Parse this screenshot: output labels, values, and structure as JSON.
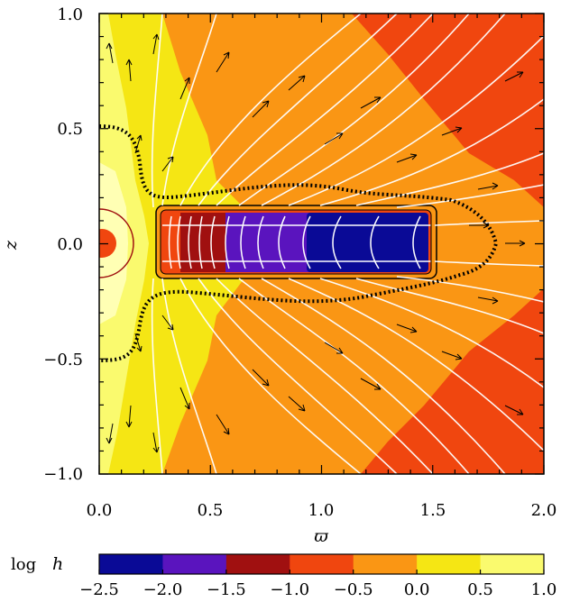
{
  "chart_data": {
    "type": "heatmap",
    "xlabel": "ϖ",
    "ylabel": "z",
    "xlim": [
      0.0,
      2.0
    ],
    "ylim": [
      -1.0,
      1.0
    ],
    "x_ticks": [
      "0.0",
      "0.5",
      "1.0",
      "1.5",
      "2.0"
    ],
    "y_ticks": [
      "1.0",
      "0.5",
      "0.0",
      "−0.5",
      "−1.0"
    ],
    "colorbar": {
      "label_prefix": "log",
      "label_var": "h",
      "ticks": [
        "−2.5",
        "−2.0",
        "−1.5",
        "−1.0",
        "−0.5",
        "0.0",
        "0.5",
        "1.0"
      ],
      "levels": [
        -2.5,
        -2.0,
        -1.5,
        -1.0,
        -0.5,
        0.0,
        0.5,
        1.0
      ],
      "colors": [
        "#0a0a96",
        "#5a14be",
        "#a01010",
        "#f0460f",
        "#fa9614",
        "#f5e614",
        "#fafa6e",
        "#ffffb4"
      ]
    },
    "disc_region": {
      "r": [
        0.27,
        1.5
      ],
      "z": [
        -0.12,
        0.12
      ]
    },
    "star_radius": 0.13,
    "overlays": [
      "velocity arrows",
      "white field lines",
      "dotted boundary contour"
    ]
  }
}
